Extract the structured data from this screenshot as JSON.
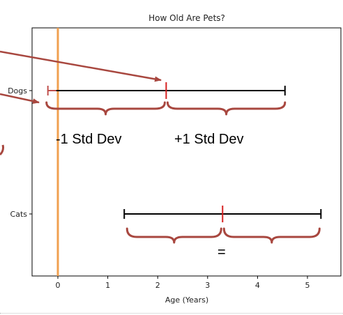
{
  "chart_data": {
    "type": "errorbar",
    "title": "How Old Are Pets?",
    "xlabel": "Age (Years)",
    "ylabel": "",
    "xlim": [
      -0.5,
      5.5
    ],
    "xticks": [
      "0",
      "1",
      "2",
      "3",
      "4",
      "5"
    ],
    "categories": [
      "Dogs",
      "Cats"
    ],
    "series": [
      {
        "category": "Dogs",
        "mean": 2.17,
        "lower": -0.2,
        "upper": 4.55
      },
      {
        "category": "Cats",
        "mean": 3.3,
        "lower": 1.33,
        "upper": 5.27
      }
    ],
    "reference_line": {
      "x": 0,
      "color": "#f0a050"
    },
    "annotations": {
      "minus_sd": "-1 Std Dev",
      "plus_sd": "+1 Std Dev",
      "equal": "="
    },
    "colors": {
      "bar": "#000000",
      "mean_marker": "#d62020",
      "brace": "#a8473f",
      "arrow": "#a8473f",
      "left_cap_dogs": "#c0504d"
    },
    "grid": false
  }
}
